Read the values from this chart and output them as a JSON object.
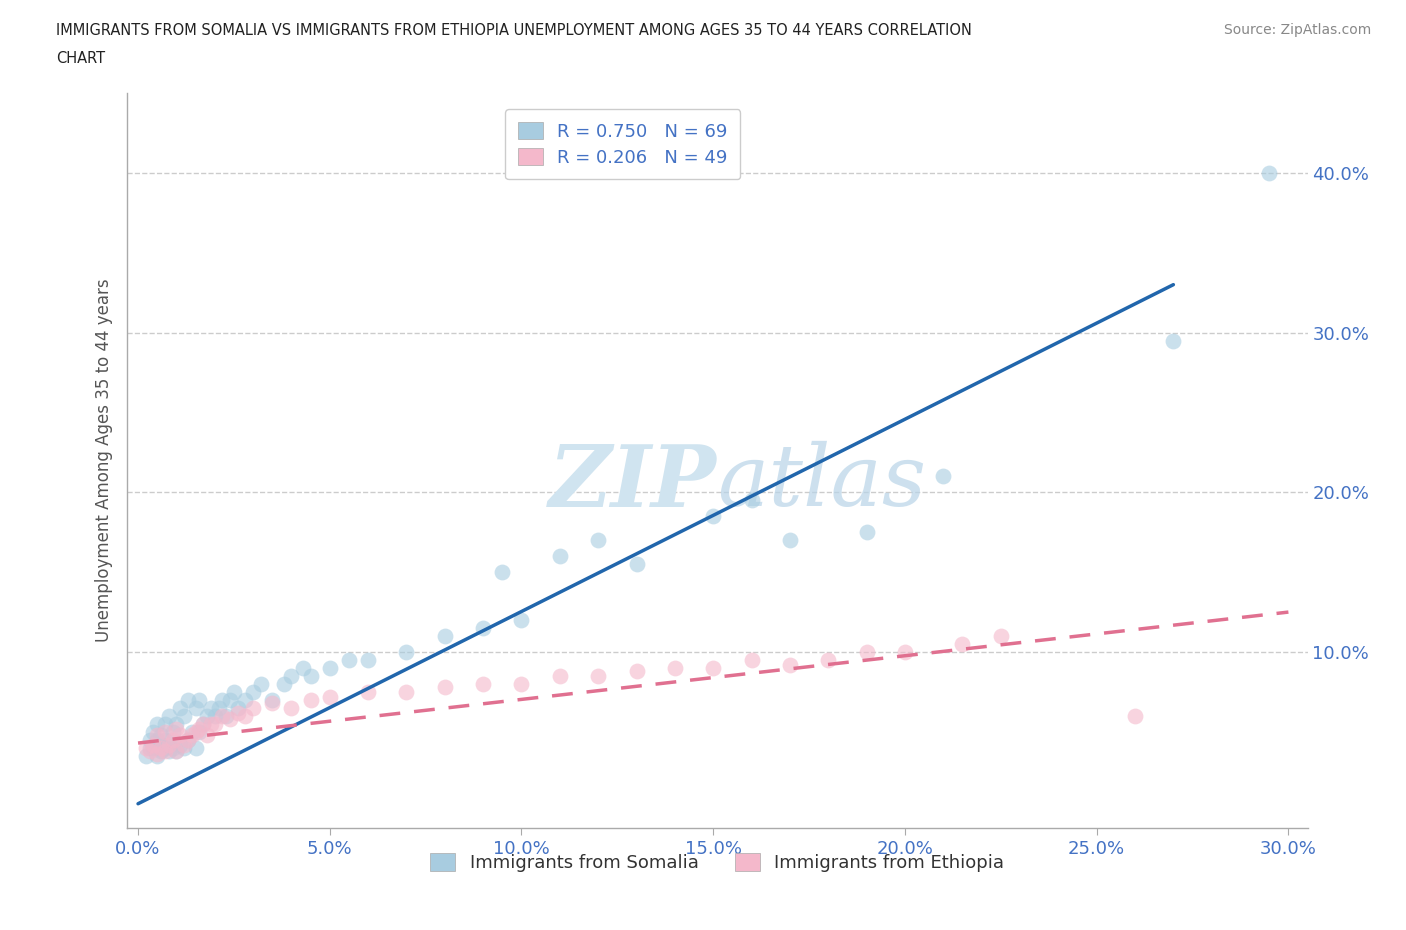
{
  "title": "IMMIGRANTS FROM SOMALIA VS IMMIGRANTS FROM ETHIOPIA UNEMPLOYMENT AMONG AGES 35 TO 44 YEARS CORRELATION\nCHART",
  "source": "Source: ZipAtlas.com",
  "ylabel": "Unemployment Among Ages 35 to 44 years",
  "xlabel_somalia": "Immigrants from Somalia",
  "xlabel_ethiopia": "Immigrants from Ethiopia",
  "xlim": [
    -0.003,
    0.305
  ],
  "ylim": [
    -0.01,
    0.45
  ],
  "ytick_positions": [
    0.1,
    0.2,
    0.3,
    0.4
  ],
  "ytick_labels": [
    "10.0%",
    "20.0%",
    "30.0%",
    "40.0%"
  ],
  "xtick_positions": [
    0.0,
    0.05,
    0.1,
    0.15,
    0.2,
    0.25,
    0.3
  ],
  "xtick_labels": [
    "0.0%",
    "5.0%",
    "10.0%",
    "15.0%",
    "20.0%",
    "25.0%",
    "30.0%"
  ],
  "R_somalia": 0.75,
  "N_somalia": 69,
  "R_ethiopia": 0.206,
  "N_ethiopia": 49,
  "color_somalia": "#a8cce0",
  "color_ethiopia": "#f4b8cb",
  "line_color_somalia": "#2166ac",
  "line_color_ethiopia": "#e07090",
  "watermark_color": "#d0e4f0",
  "background_color": "#ffffff",
  "grid_color": "#cccccc",
  "somalia_line_x0": 0.0,
  "somalia_line_y0": 0.005,
  "somalia_line_x1": 0.27,
  "somalia_line_y1": 0.33,
  "ethiopia_line_x0": 0.0,
  "ethiopia_line_y0": 0.043,
  "ethiopia_line_x1": 0.3,
  "ethiopia_line_y1": 0.125,
  "somalia_x": [
    0.002,
    0.003,
    0.003,
    0.004,
    0.004,
    0.005,
    0.005,
    0.005,
    0.005,
    0.006,
    0.006,
    0.006,
    0.007,
    0.007,
    0.007,
    0.008,
    0.008,
    0.008,
    0.009,
    0.009,
    0.01,
    0.01,
    0.011,
    0.011,
    0.012,
    0.012,
    0.013,
    0.013,
    0.014,
    0.015,
    0.015,
    0.016,
    0.016,
    0.017,
    0.018,
    0.019,
    0.02,
    0.021,
    0.022,
    0.023,
    0.024,
    0.025,
    0.026,
    0.028,
    0.03,
    0.032,
    0.035,
    0.038,
    0.04,
    0.043,
    0.045,
    0.05,
    0.055,
    0.06,
    0.07,
    0.08,
    0.09,
    0.095,
    0.1,
    0.11,
    0.12,
    0.13,
    0.15,
    0.16,
    0.17,
    0.19,
    0.21,
    0.27,
    0.295
  ],
  "somalia_y": [
    0.035,
    0.04,
    0.045,
    0.04,
    0.05,
    0.035,
    0.04,
    0.045,
    0.055,
    0.038,
    0.042,
    0.048,
    0.04,
    0.045,
    0.055,
    0.038,
    0.042,
    0.06,
    0.04,
    0.05,
    0.038,
    0.055,
    0.042,
    0.065,
    0.04,
    0.06,
    0.045,
    0.07,
    0.05,
    0.04,
    0.065,
    0.05,
    0.07,
    0.055,
    0.06,
    0.065,
    0.06,
    0.065,
    0.07,
    0.06,
    0.07,
    0.075,
    0.065,
    0.07,
    0.075,
    0.08,
    0.07,
    0.08,
    0.085,
    0.09,
    0.085,
    0.09,
    0.095,
    0.095,
    0.1,
    0.11,
    0.115,
    0.15,
    0.12,
    0.16,
    0.17,
    0.155,
    0.185,
    0.195,
    0.17,
    0.175,
    0.21,
    0.295,
    0.4
  ],
  "ethiopia_x": [
    0.002,
    0.003,
    0.004,
    0.005,
    0.005,
    0.006,
    0.007,
    0.007,
    0.008,
    0.009,
    0.01,
    0.01,
    0.011,
    0.012,
    0.013,
    0.014,
    0.015,
    0.016,
    0.017,
    0.018,
    0.019,
    0.02,
    0.022,
    0.024,
    0.026,
    0.028,
    0.03,
    0.035,
    0.04,
    0.045,
    0.05,
    0.06,
    0.07,
    0.08,
    0.09,
    0.1,
    0.11,
    0.12,
    0.13,
    0.14,
    0.15,
    0.16,
    0.17,
    0.18,
    0.19,
    0.2,
    0.215,
    0.225,
    0.26
  ],
  "ethiopia_y": [
    0.04,
    0.038,
    0.042,
    0.036,
    0.048,
    0.04,
    0.038,
    0.05,
    0.042,
    0.045,
    0.038,
    0.052,
    0.048,
    0.042,
    0.045,
    0.048,
    0.05,
    0.052,
    0.055,
    0.048,
    0.055,
    0.055,
    0.06,
    0.058,
    0.062,
    0.06,
    0.065,
    0.068,
    0.065,
    0.07,
    0.072,
    0.075,
    0.075,
    0.078,
    0.08,
    0.08,
    0.085,
    0.085,
    0.088,
    0.09,
    0.09,
    0.095,
    0.092,
    0.095,
    0.1,
    0.1,
    0.105,
    0.11,
    0.06
  ]
}
